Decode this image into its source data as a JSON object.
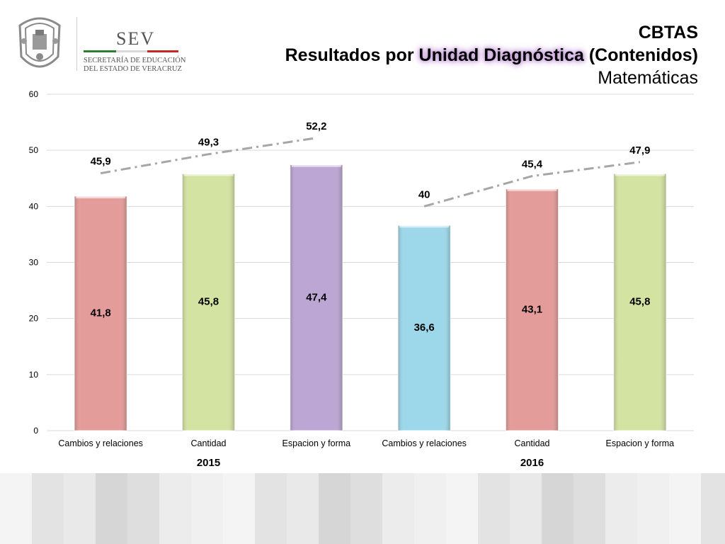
{
  "header": {
    "logo_text": "SEV",
    "logo_subtitle_line1": "SECRETARÍA DE EDUCACIÓN",
    "logo_subtitle_line2": "DEL ESTADO DE VERACRUZ",
    "title_line1": "CBTAS",
    "title_line2_prefix": "Resultados por ",
    "title_line2_highlight": "Unidad Diagnóstica",
    "title_line2_suffix": " (Contenidos)",
    "title_line3": "Matemáticas"
  },
  "colors": {
    "bar_red": "#e49c9a",
    "bar_green": "#d3e3a2",
    "bar_purple": "#bca6d3",
    "bar_blue": "#9dd8ea",
    "trend_line": "#a6a6a6",
    "grid": "#d9d9d9",
    "text": "#000000"
  },
  "chart_data": {
    "type": "bar",
    "categories": [
      "Cambios y relaciones",
      "Cantidad",
      "Espacion y forma",
      "Cambios y relaciones",
      "Cantidad",
      "Espacion y forma"
    ],
    "groups": [
      {
        "label": "2015",
        "categories": [
          0,
          1,
          2
        ]
      },
      {
        "label": "2016",
        "categories": [
          3,
          4,
          5
        ]
      }
    ],
    "series": [
      {
        "values": [
          41.8,
          45.8,
          47.4,
          36.6,
          43.1,
          45.8
        ],
        "labels": [
          "41,8",
          "45,8",
          "47,4",
          "36,6",
          "43,1",
          "45,8"
        ],
        "bar_colors": [
          "#e49c9a",
          "#d3e3a2",
          "#bca6d3",
          "#9dd8ea",
          "#e49c9a",
          "#d3e3a2"
        ]
      },
      {
        "type": "line",
        "style": "dash-dot",
        "values": [
          45.9,
          49.3,
          52.2,
          40,
          45.4,
          47.9
        ],
        "labels": [
          "45,9",
          "49,3",
          "52,2",
          "40",
          "45,4",
          "47,9"
        ],
        "segments": [
          [
            0,
            2
          ],
          [
            3,
            5
          ]
        ]
      }
    ],
    "ylim": [
      0,
      60
    ],
    "yticks": [
      "0",
      "10",
      "20",
      "30",
      "40",
      "50",
      "60"
    ],
    "grid": true,
    "legend": "none",
    "xlabel": "",
    "ylabel": ""
  }
}
